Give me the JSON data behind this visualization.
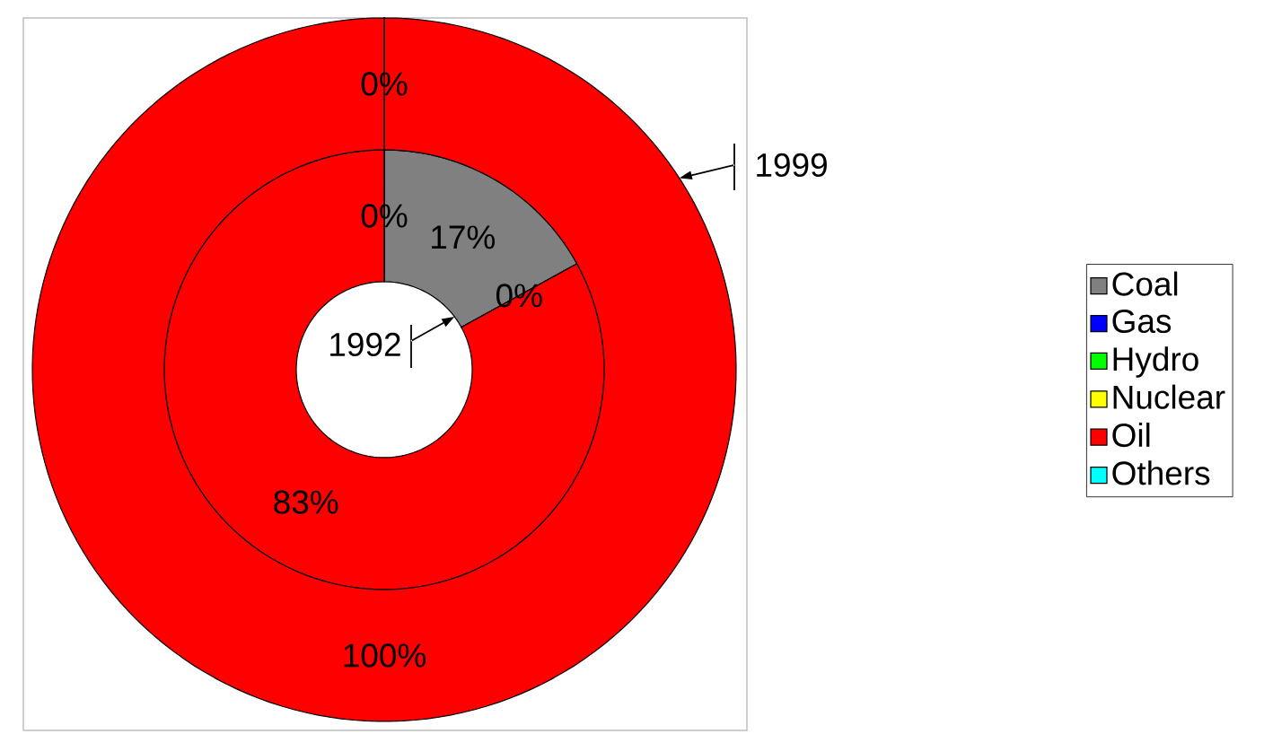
{
  "chart_data": {
    "type": "donut",
    "categories": [
      "Coal",
      "Gas",
      "Hydro",
      "Nuclear",
      "Oil",
      "Others"
    ],
    "colors": [
      "#808080",
      "#0000ff",
      "#00ff00",
      "#ffff00",
      "#ff0000",
      "#00ffff"
    ],
    "series": [
      {
        "name": "1992",
        "values": [
          17,
          0,
          0,
          0,
          83,
          0
        ],
        "value_labels": [
          "17%",
          "0%",
          null,
          null,
          "83%",
          "0%"
        ]
      },
      {
        "name": "1999",
        "values": [
          0,
          0,
          0,
          0,
          100,
          0
        ],
        "value_labels": [
          "0%",
          null,
          null,
          null,
          "100%",
          null
        ]
      }
    ],
    "legend": "right"
  }
}
